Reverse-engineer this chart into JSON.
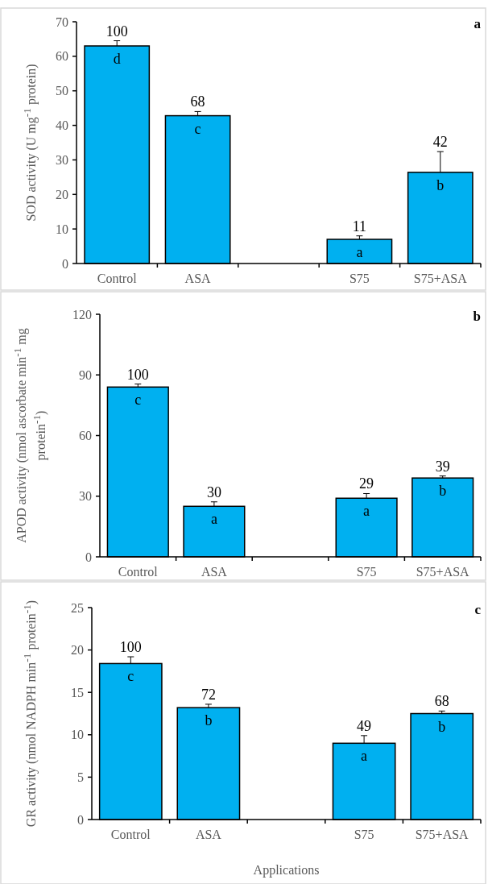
{
  "chart_data": [
    {
      "type": "bar",
      "title": "a",
      "ylabel": "SOD activity (U mg$^{-1}$ protein)",
      "categories": [
        "Control",
        "ASA",
        null,
        "S75",
        "S75+ASA"
      ],
      "color": "#00b0f0",
      "values": [
        63,
        42.8,
        null,
        7,
        26.4
      ],
      "errors": [
        1.5,
        1.2,
        null,
        1,
        6
      ],
      "ylim": [
        0,
        70
      ],
      "yticks": [
        0,
        10,
        20,
        30,
        40,
        50,
        60,
        70
      ],
      "grid": false,
      "annotations": [
        {
          "text": "100",
          "x": "Control",
          "y": 64.5
        },
        {
          "text": "68",
          "x": "ASA",
          "y": 44
        },
        {
          "text": "11",
          "x": "S75",
          "y": 8
        },
        {
          "text": "42",
          "x": "S75+ASA",
          "y": 32.4
        },
        {
          "text": "d",
          "x": "Control",
          "y": 63
        },
        {
          "text": "c",
          "x": "ASA",
          "y": 42.8
        },
        {
          "text": "a",
          "x": "S75",
          "y": 7
        },
        {
          "text": "b",
          "x": "S75+ASA",
          "y": 26.4
        }
      ]
    },
    {
      "type": "bar",
      "title": "b",
      "ylabel": "APOD activity (nmol ascorbate min$^{-1}$ mg protein$^{-1}$)",
      "categories": [
        "Control",
        "ASA",
        null,
        "S75",
        "S75+ASA"
      ],
      "color": "#00b0f0",
      "values": [
        84,
        25,
        null,
        29,
        39
      ],
      "errors": [
        1.5,
        2.2,
        null,
        2.3,
        1
      ],
      "ylim": [
        0,
        120
      ],
      "yticks": [
        0,
        30,
        60,
        90,
        120
      ],
      "grid": false,
      "annotations": [
        {
          "text": "100",
          "x": "Control",
          "y": 85.5
        },
        {
          "text": "30",
          "x": "ASA",
          "y": 27.2
        },
        {
          "text": "29",
          "x": "S75",
          "y": 31.3
        },
        {
          "text": "39",
          "x": "S75+ASA",
          "y": 40
        },
        {
          "text": "c",
          "x": "Control",
          "y": 84
        },
        {
          "text": "a",
          "x": "ASA",
          "y": 25
        },
        {
          "text": "a",
          "x": "S75",
          "y": 29
        },
        {
          "text": "b",
          "x": "S75+ASA",
          "y": 39
        }
      ]
    },
    {
      "type": "bar",
      "title": "c",
      "xlabel": "Applications",
      "ylabel": "GR activity (nmol NADPH min$^{-1}$ protein$^{-1}$)",
      "categories": [
        "Control",
        "ASA",
        null,
        "S75",
        "S75+ASA"
      ],
      "color": "#00b0f0",
      "values": [
        18.4,
        13.2,
        null,
        9,
        12.5
      ],
      "errors": [
        0.8,
        0.4,
        null,
        0.9,
        0.3
      ],
      "ylim": [
        0,
        25
      ],
      "yticks": [
        0,
        5,
        10,
        15,
        20,
        25
      ],
      "grid": false,
      "annotations": [
        {
          "text": "100",
          "x": "Control",
          "y": 19.2
        },
        {
          "text": "72",
          "x": "ASA",
          "y": 13.6
        },
        {
          "text": "49",
          "x": "S75",
          "y": 9.9
        },
        {
          "text": "68",
          "x": "S75+ASA",
          "y": 12.8
        },
        {
          "text": "c",
          "x": "Control",
          "y": 18.4
        },
        {
          "text": "b",
          "x": "ASA",
          "y": 13.2
        },
        {
          "text": "a",
          "x": "S75",
          "y": 9
        },
        {
          "text": "b",
          "x": "S75+ASA",
          "y": 12.5
        }
      ]
    }
  ]
}
